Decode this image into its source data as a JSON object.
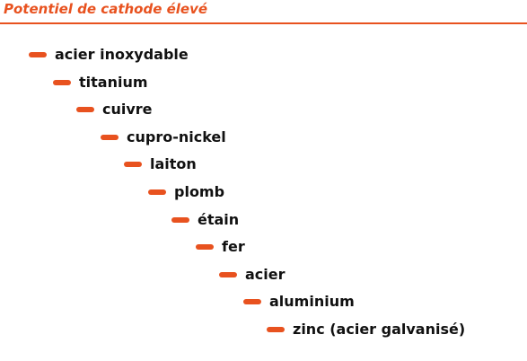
{
  "colors": {
    "accent": "#e8521f",
    "text": "#111111"
  },
  "header": {
    "title": "Potentiel de cathode élevé"
  },
  "series": {
    "items": [
      {
        "label": "acier inoxydable"
      },
      {
        "label": "titanium"
      },
      {
        "label": "cuivre"
      },
      {
        "label": "cupro-nickel"
      },
      {
        "label": "laiton"
      },
      {
        "label": "plomb"
      },
      {
        "label": "étain"
      },
      {
        "label": "fer"
      },
      {
        "label": "acier"
      },
      {
        "label": "aluminium"
      },
      {
        "label": "zinc (acier galvanisé)"
      }
    ]
  }
}
